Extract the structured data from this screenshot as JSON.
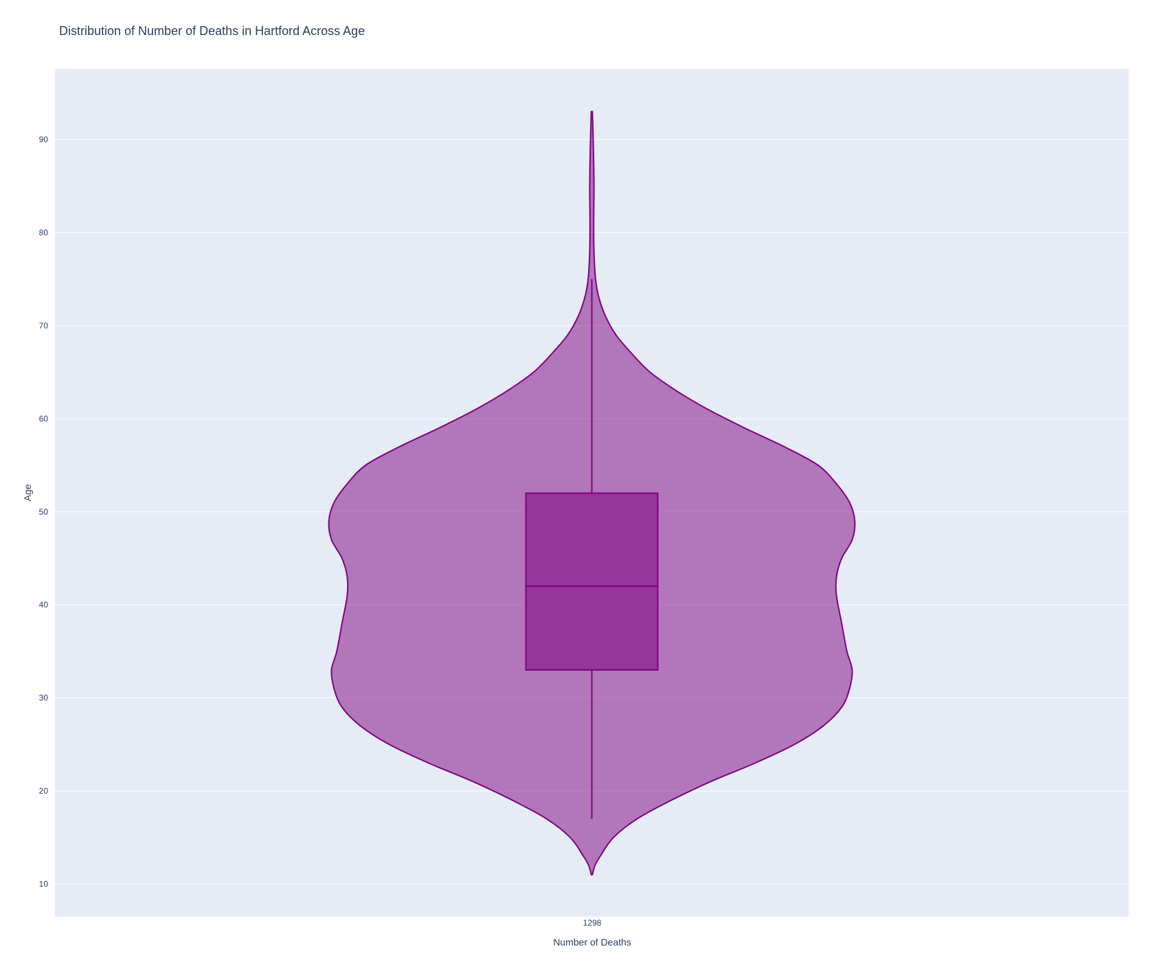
{
  "chart_data": {
    "type": "violin",
    "title": "Distribution of Number of Deaths in Hartford Across Age",
    "xlabel": "Number of Deaths",
    "ylabel": "Age",
    "categories": [
      "1298"
    ],
    "ylim": [
      6.5,
      97.6
    ],
    "yticks": [
      10,
      20,
      30,
      40,
      50,
      60,
      70,
      80,
      90
    ],
    "grid": true,
    "box": {
      "q1": 33,
      "median": 42,
      "q3": 52,
      "lower_fence": 17,
      "upper_fence": 75
    },
    "data_range": [
      11,
      93
    ],
    "density_profile": [
      {
        "age": 11,
        "width": 0.0
      },
      {
        "age": 12,
        "width": 0.01
      },
      {
        "age": 13,
        "width": 0.03
      },
      {
        "age": 15,
        "width": 0.08
      },
      {
        "age": 17,
        "width": 0.17
      },
      {
        "age": 19,
        "width": 0.3
      },
      {
        "age": 21,
        "width": 0.45
      },
      {
        "age": 23,
        "width": 0.62
      },
      {
        "age": 25,
        "width": 0.77
      },
      {
        "age": 27,
        "width": 0.88
      },
      {
        "age": 29,
        "width": 0.95
      },
      {
        "age": 31,
        "width": 0.98
      },
      {
        "age": 33,
        "width": 0.99
      },
      {
        "age": 35,
        "width": 0.97
      },
      {
        "age": 38,
        "width": 0.95
      },
      {
        "age": 41,
        "width": 0.93
      },
      {
        "age": 43,
        "width": 0.93
      },
      {
        "age": 45,
        "width": 0.95
      },
      {
        "age": 47,
        "width": 0.99
      },
      {
        "age": 49,
        "width": 1.0
      },
      {
        "age": 51,
        "width": 0.98
      },
      {
        "age": 53,
        "width": 0.93
      },
      {
        "age": 55,
        "width": 0.86
      },
      {
        "age": 57,
        "width": 0.73
      },
      {
        "age": 59,
        "width": 0.58
      },
      {
        "age": 61,
        "width": 0.44
      },
      {
        "age": 63,
        "width": 0.32
      },
      {
        "age": 65,
        "width": 0.22
      },
      {
        "age": 67,
        "width": 0.15
      },
      {
        "age": 69,
        "width": 0.09
      },
      {
        "age": 71,
        "width": 0.05
      },
      {
        "age": 73,
        "width": 0.025
      },
      {
        "age": 75,
        "width": 0.012
      },
      {
        "age": 78,
        "width": 0.006
      },
      {
        "age": 81,
        "width": 0.005
      },
      {
        "age": 85,
        "width": 0.006
      },
      {
        "age": 89,
        "width": 0.004
      },
      {
        "age": 93,
        "width": 0.0
      }
    ],
    "colors": {
      "line": "#800080",
      "violin_fill": "rgba(128,0,128,0.5)",
      "box_fill": "rgba(128,0,128,0.55)",
      "plot_bg": "#e5ecf6",
      "grid": "#ffffff",
      "text": "#2a3f5f"
    }
  }
}
